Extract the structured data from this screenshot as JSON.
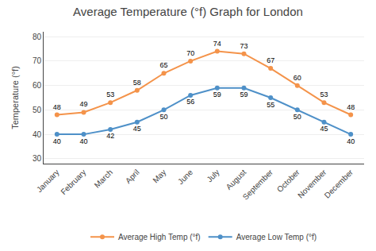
{
  "chart_data": {
    "type": "line",
    "title": "Average Temperature (°f) Graph for London",
    "categories": [
      "January",
      "February",
      "March",
      "April",
      "May",
      "June",
      "July",
      "August",
      "September",
      "October",
      "November",
      "December"
    ],
    "series": [
      {
        "name": "Average High Temp (°f)",
        "color": "#f4934a",
        "values": [
          48,
          49,
          53,
          58,
          65,
          70,
          74,
          73,
          67,
          60,
          53,
          48
        ]
      },
      {
        "name": "Average Low Temp (°f)",
        "color": "#4e90c8",
        "values": [
          40,
          40,
          42,
          45,
          50,
          56,
          59,
          59,
          55,
          50,
          45,
          40
        ]
      }
    ],
    "ylabel": "Temperature (°f)",
    "ylim": [
      28,
      82
    ],
    "yticks": [
      30,
      40,
      50,
      60,
      70,
      80
    ],
    "grid": true,
    "data_labels": true,
    "legend": "bottom",
    "marker": "circle"
  }
}
